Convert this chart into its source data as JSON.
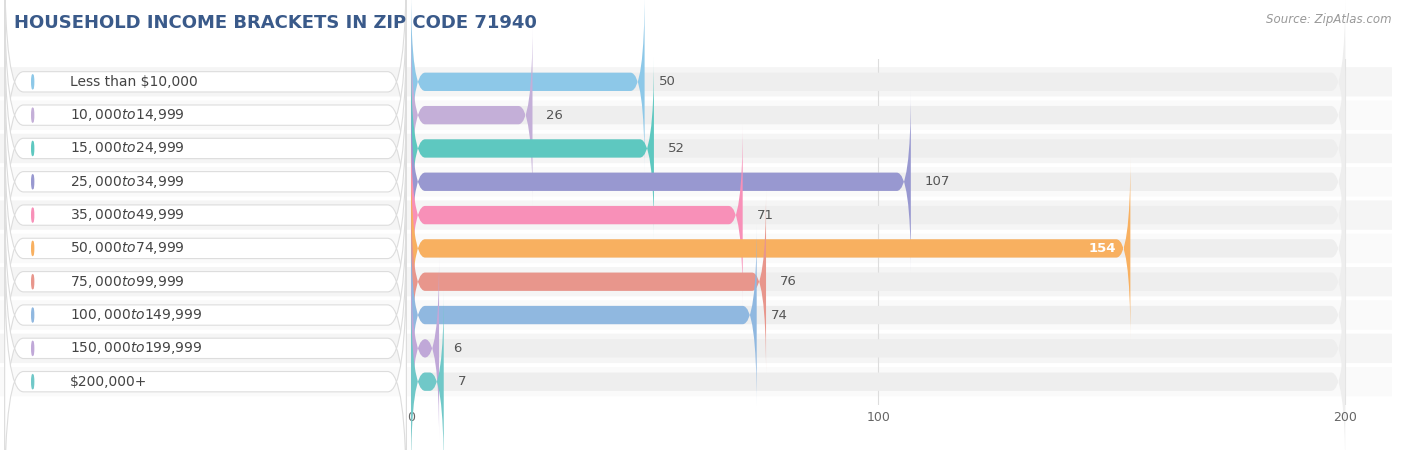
{
  "title": "HOUSEHOLD INCOME BRACKETS IN ZIP CODE 71940",
  "source": "Source: ZipAtlas.com",
  "categories": [
    "Less than $10,000",
    "$10,000 to $14,999",
    "$15,000 to $24,999",
    "$25,000 to $34,999",
    "$35,000 to $49,999",
    "$50,000 to $74,999",
    "$75,000 to $99,999",
    "$100,000 to $149,999",
    "$150,000 to $199,999",
    "$200,000+"
  ],
  "values": [
    50,
    26,
    52,
    107,
    71,
    154,
    76,
    74,
    6,
    7
  ],
  "bar_colors": [
    "#8dc8e8",
    "#c4afd8",
    "#5ec8c0",
    "#9898d0",
    "#f890b8",
    "#f8b060",
    "#e8968c",
    "#90b8e0",
    "#c0a8d8",
    "#70c8c8"
  ],
  "xlim": [
    0,
    210
  ],
  "xticks": [
    0,
    100,
    200
  ],
  "background_color": "#ffffff",
  "bar_bg_color": "#eeeeee",
  "row_bg_color": "#f8f8f8",
  "label_font_size": 10,
  "value_font_size": 9.5,
  "title_font_size": 13,
  "bar_height": 0.55,
  "label_color": "#444444",
  "value_color_inside": "#ffffff",
  "value_color_outside": "#555555",
  "pill_color": "#ffffff",
  "pill_edge_color": "#dddddd"
}
